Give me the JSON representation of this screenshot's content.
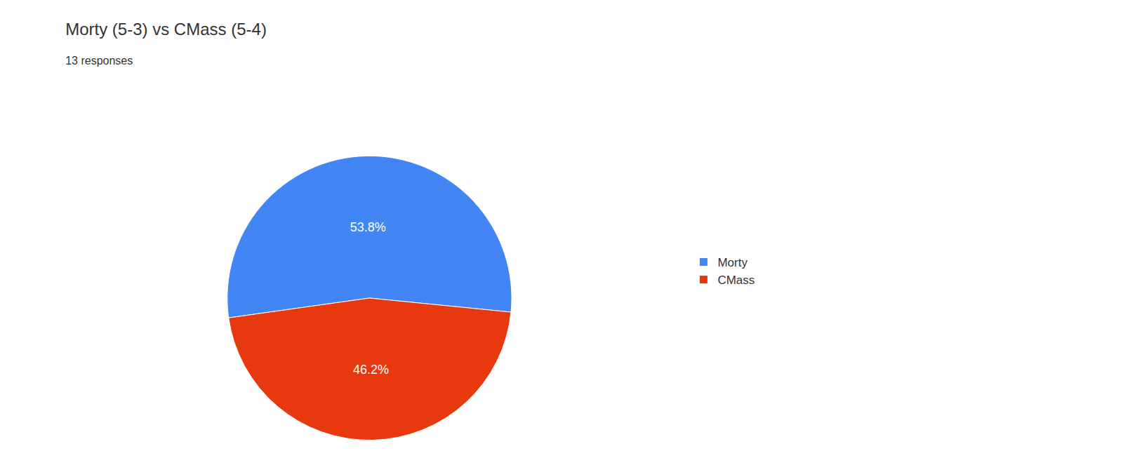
{
  "chart_data": {
    "type": "pie",
    "title": "Morty (5-3) vs CMass (5-4)",
    "subtitle": "13 responses",
    "categories": [
      "Morty",
      "CMass"
    ],
    "values": [
      53.8,
      46.2
    ],
    "value_labels": [
      "53.8%",
      "46.2%"
    ],
    "colors": [
      "#4285f4",
      "#e8390e"
    ],
    "data_labels": true,
    "legend": "right"
  }
}
